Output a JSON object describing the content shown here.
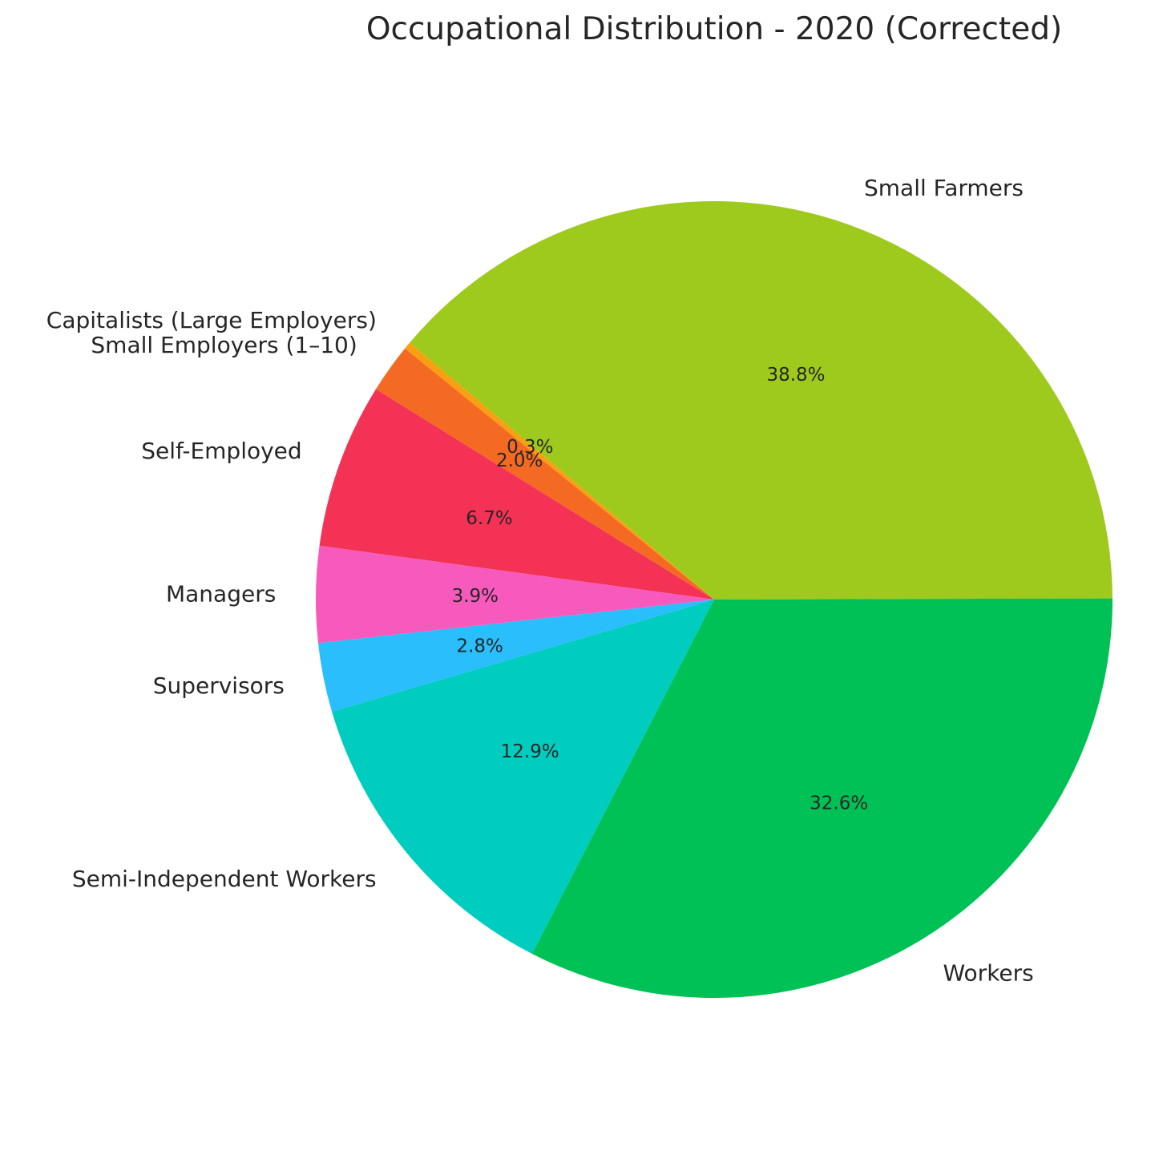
{
  "chart_data": {
    "type": "pie",
    "title": "Occupational Distribution - 2020 (Corrected)",
    "start_angle_deg": 0.16,
    "direction": "counterclockwise",
    "slices": [
      {
        "label": "Small Farmers",
        "value": 38.8,
        "pct_label": "38.8%",
        "color": "#9dca1c"
      },
      {
        "label": "Capitalists (Large Employers)",
        "value": 0.3,
        "pct_label": "0.3%",
        "color": "#f9a012"
      },
      {
        "label": "Small Employers (1–10)",
        "value": 2.0,
        "pct_label": "2.0%",
        "color": "#f46a22"
      },
      {
        "label": "Self-Employed",
        "value": 6.7,
        "pct_label": "6.7%",
        "color": "#f43256"
      },
      {
        "label": "Managers",
        "value": 3.9,
        "pct_label": "3.9%",
        "color": "#f859bc"
      },
      {
        "label": "Supervisors",
        "value": 2.8,
        "pct_label": "2.8%",
        "color": "#2bbefc"
      },
      {
        "label": "Semi-Independent Workers",
        "value": 12.9,
        "pct_label": "12.9%",
        "color": "#00ccbf"
      },
      {
        "label": "Workers",
        "value": 32.6,
        "pct_label": "32.6%",
        "color": "#00c155"
      }
    ]
  }
}
